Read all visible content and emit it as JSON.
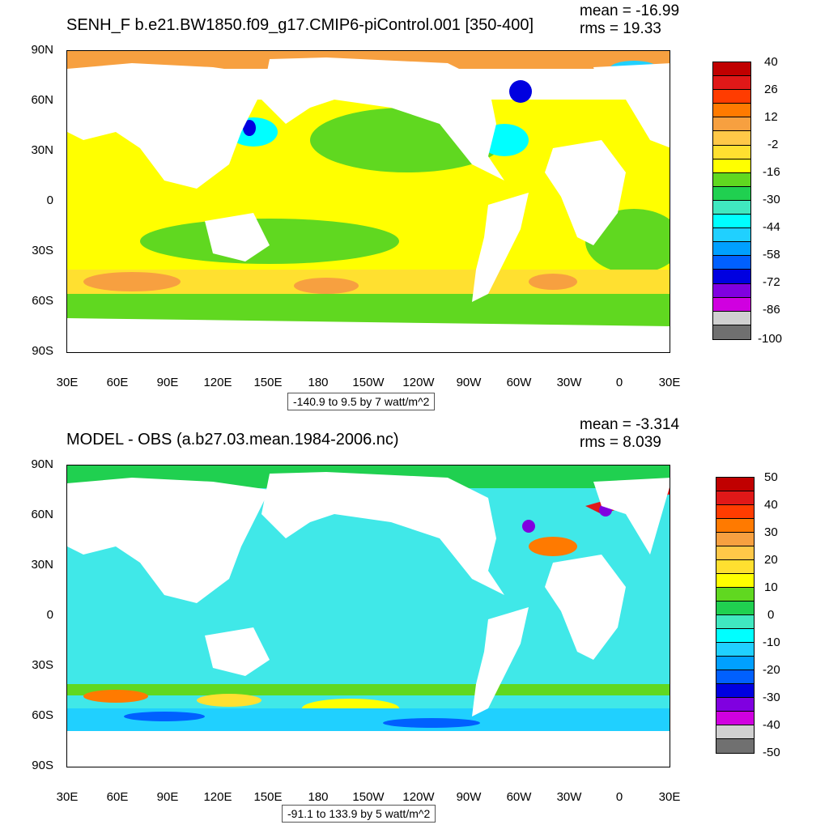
{
  "panels": [
    {
      "title": "SENH_F b.e21.BW1850.f09_g17.CMIP6-piControl.001 [350-400]",
      "mean": "mean = -16.99",
      "rms": "rms = 19.33",
      "range_label": "-140.9 to 9.5 by 7 watt/m^2",
      "colorbar_labels": [
        "40",
        "26",
        "12",
        "-2",
        "-16",
        "-30",
        "-44",
        "-58",
        "-72",
        "-86",
        "-100"
      ],
      "colorbar_colors": [
        "#c00000",
        "#e01818",
        "#ff3c00",
        "#ff7a00",
        "#f7a040",
        "#ffc848",
        "#ffe030",
        "#ffff00",
        "#60d820",
        "#20d050",
        "#40e8c0",
        "#00ffff",
        "#20d0ff",
        "#00a0ff",
        "#0060ff",
        "#0000e0",
        "#8000e0",
        "#d000e0",
        "#d0d0d0",
        "#707070"
      ]
    },
    {
      "title": "MODEL - OBS (a.b27.03.mean.1984-2006.nc)",
      "mean": "mean = -3.314",
      "rms": "rms = 8.039",
      "range_label": "-91.1 to 133.9 by 5 watt/m^2",
      "colorbar_labels": [
        "50",
        "40",
        "30",
        "20",
        "10",
        "0",
        "-10",
        "-20",
        "-30",
        "-40",
        "-50"
      ],
      "colorbar_colors": [
        "#c00000",
        "#e01818",
        "#ff3c00",
        "#ff7a00",
        "#f7a040",
        "#ffc848",
        "#ffe030",
        "#ffff00",
        "#60d820",
        "#20d050",
        "#40e8c0",
        "#00ffff",
        "#20d0ff",
        "#00a0ff",
        "#0060ff",
        "#0000e0",
        "#8000e0",
        "#d000e0",
        "#d0d0d0",
        "#707070"
      ]
    }
  ],
  "lat_labels": [
    "90N",
    "60N",
    "30N",
    "0",
    "30S",
    "60S",
    "90S"
  ],
  "lon_labels": [
    "30E",
    "60E",
    "90E",
    "120E",
    "150E",
    "180",
    "150W",
    "120W",
    "90W",
    "60W",
    "30W",
    "0",
    "30E"
  ]
}
